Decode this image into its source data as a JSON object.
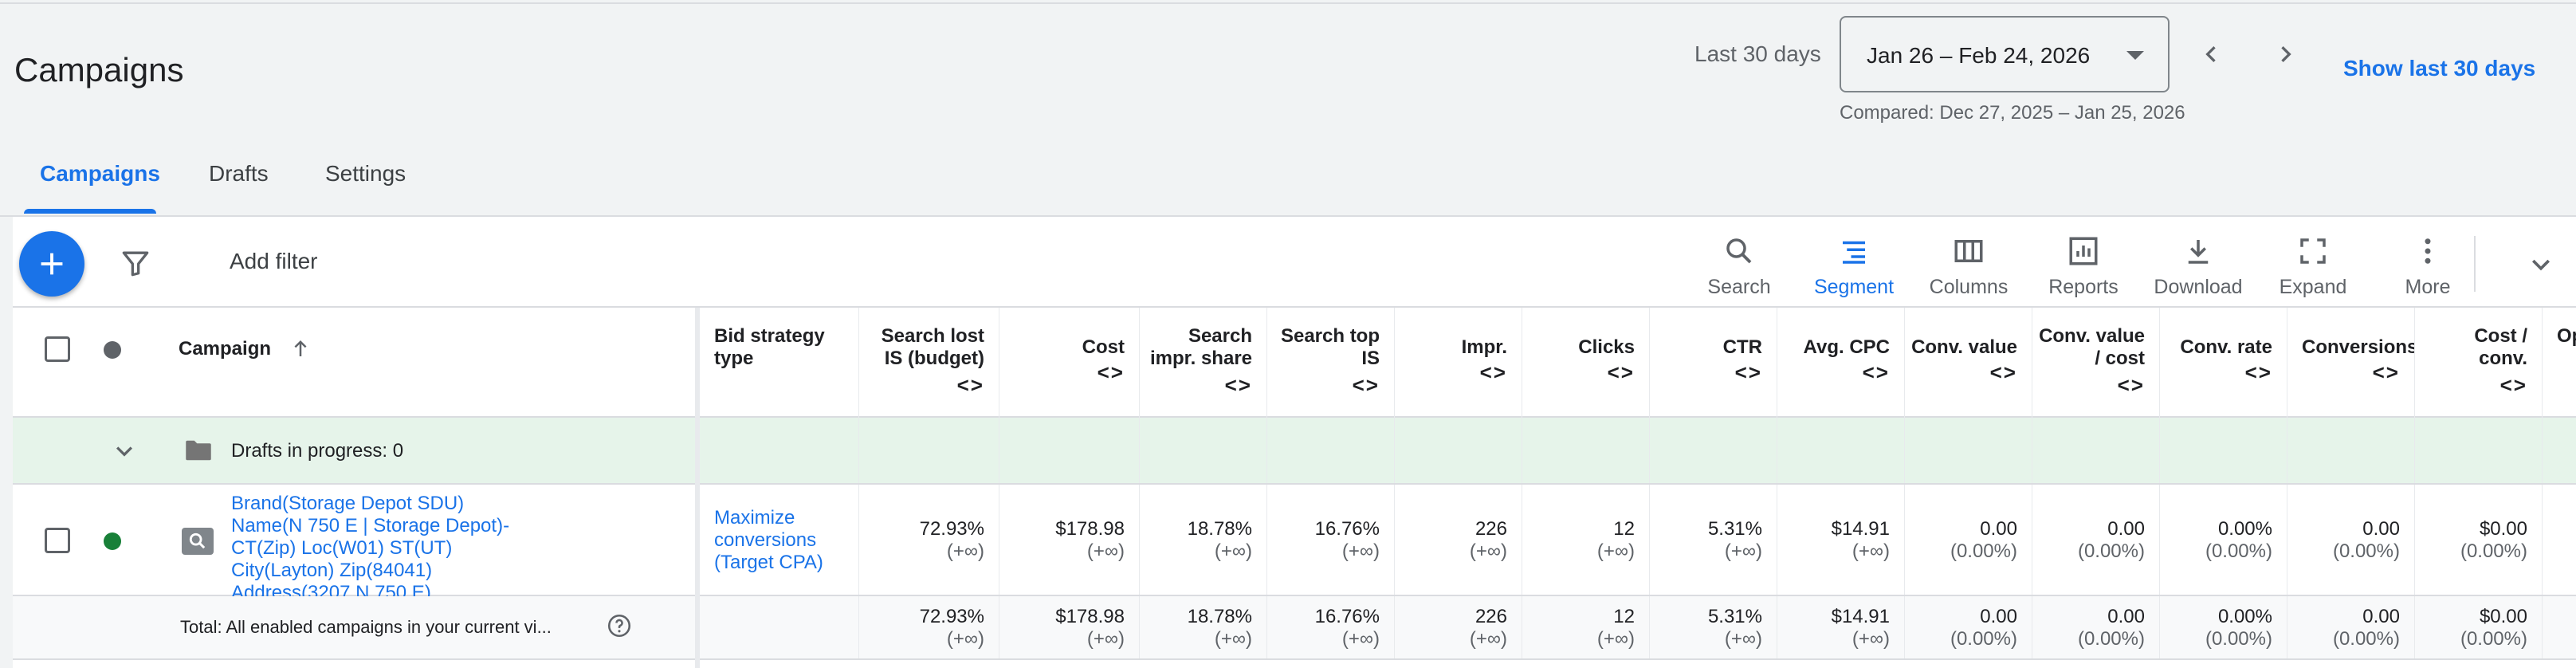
{
  "page": {
    "title": "Campaigns"
  },
  "date_range": {
    "label": "Last 30 days",
    "value": "Jan 26 – Feb 24, 2026",
    "compared": "Compared: Dec 27, 2025 – Jan 25, 2026",
    "show_last": "Show last 30 days"
  },
  "tabs": [
    {
      "label": "Campaigns",
      "active": true
    },
    {
      "label": "Drafts",
      "active": false
    },
    {
      "label": "Settings",
      "active": false
    }
  ],
  "toolbar": {
    "add_filter": "Add filter",
    "tools": [
      {
        "label": "Search",
        "icon": "search-icon"
      },
      {
        "label": "Segment",
        "icon": "segment-icon",
        "active": true
      },
      {
        "label": "Columns",
        "icon": "columns-icon"
      },
      {
        "label": "Reports",
        "icon": "reports-icon"
      },
      {
        "label": "Download",
        "icon": "download-icon"
      },
      {
        "label": "Expand",
        "icon": "expand-icon"
      },
      {
        "label": "More",
        "icon": "more-vert-icon"
      }
    ]
  },
  "table": {
    "headers": {
      "campaign": "Campaign",
      "bid_strategy": "Bid strategy\ntype",
      "search_lost_is": "Search lost\nIS (budget)",
      "cost": "Cost",
      "search_impr_share": "Search\nimpr. share",
      "search_top_is": "Search top\nIS",
      "impr": "Impr.",
      "clicks": "Clicks",
      "ctr": "CTR",
      "avg_cpc": "Avg. CPC",
      "conv_value": "Conv. value",
      "conv_value_cost": "Conv. value\n/ cost",
      "conv_rate": "Conv. rate",
      "conversions": "Conversions",
      "cost_conv": "Cost /\nconv.",
      "op": "Op"
    },
    "sort_glyph": "<>",
    "drafts_row": {
      "label": "Drafts in progress: 0"
    },
    "campaign_row": {
      "name_lines": [
        "Brand(Storage Depot SDU)",
        "Name(N 750 E | Storage Depot)-",
        "CT(Zip) Loc(W01) ST(UT)",
        "City(Layton) Zip(84041)",
        "Address(3207 N 750 E)"
      ],
      "bid_lines": [
        "Maximize",
        "conversions",
        "(Target CPA)"
      ],
      "status_color": "#188038",
      "values": {
        "search_lost_is": [
          "72.93%",
          "(+∞)"
        ],
        "cost": [
          "$178.98",
          "(+∞)"
        ],
        "search_impr_share": [
          "18.78%",
          "(+∞)"
        ],
        "search_top_is": [
          "16.76%",
          "(+∞)"
        ],
        "impr": [
          "226",
          "(+∞)"
        ],
        "clicks": [
          "12",
          "(+∞)"
        ],
        "ctr": [
          "5.31%",
          "(+∞)"
        ],
        "avg_cpc": [
          "$14.91",
          "(+∞)"
        ],
        "conv_value": [
          "0.00",
          "(0.00%)"
        ],
        "conv_value_cost": [
          "0.00",
          "(0.00%)"
        ],
        "conv_rate": [
          "0.00%",
          "(0.00%)"
        ],
        "conversions": [
          "0.00",
          "(0.00%)"
        ],
        "cost_conv": [
          "$0.00",
          "(0.00%)"
        ]
      }
    },
    "total_row": {
      "label": "Total: All enabled campaigns in your current vi...",
      "values": {
        "search_lost_is": [
          "72.93%",
          "(+∞)"
        ],
        "cost": [
          "$178.98",
          "(+∞)"
        ],
        "search_impr_share": [
          "18.78%",
          "(+∞)"
        ],
        "search_top_is": [
          "16.76%",
          "(+∞)"
        ],
        "impr": [
          "226",
          "(+∞)"
        ],
        "clicks": [
          "12",
          "(+∞)"
        ],
        "ctr": [
          "5.31%",
          "(+∞)"
        ],
        "avg_cpc": [
          "$14.91",
          "(+∞)"
        ],
        "conv_value": [
          "0.00",
          "(0.00%)"
        ],
        "conv_value_cost": [
          "0.00",
          "(0.00%)"
        ],
        "conv_rate": [
          "0.00%",
          "(0.00%)"
        ],
        "conversions": [
          "0.00",
          "(0.00%)"
        ],
        "cost_conv": [
          "$0.00",
          "(0.00%)"
        ]
      }
    }
  }
}
